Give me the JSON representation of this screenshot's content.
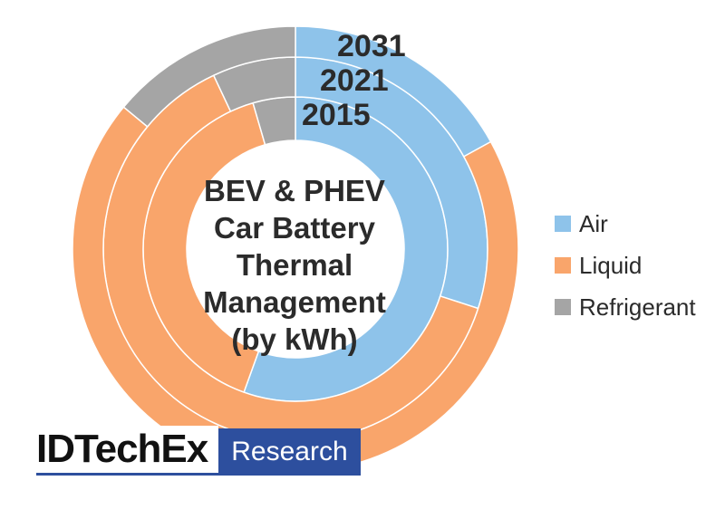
{
  "chart_data": {
    "type": "donut",
    "title_lines": [
      "BEV & PHEV",
      "Car Battery",
      "Thermal",
      "Management",
      "(by kWh)"
    ],
    "rings": [
      {
        "name": "2015",
        "values": {
          "Air": 55.5,
          "Liquid": 40.0,
          "Refrigerant": 4.5
        }
      },
      {
        "name": "2021",
        "values": {
          "Air": 30.0,
          "Liquid": 63.0,
          "Refrigerant": 7.0
        }
      },
      {
        "name": "2031",
        "values": {
          "Air": 17.0,
          "Liquid": 69.0,
          "Refrigerant": 14.0
        }
      }
    ],
    "categories": [
      "Air",
      "Liquid",
      "Refrigerant"
    ],
    "colors": {
      "Air": "#8ec3ea",
      "Liquid": "#f9a56b",
      "Refrigerant": "#a5a5a5"
    },
    "legend_position": "right",
    "start_angle": "12 o'clock, clockwise"
  },
  "logo": {
    "company": "IDTechEx",
    "division": "Research",
    "accent_color": "#2d4f9e"
  }
}
